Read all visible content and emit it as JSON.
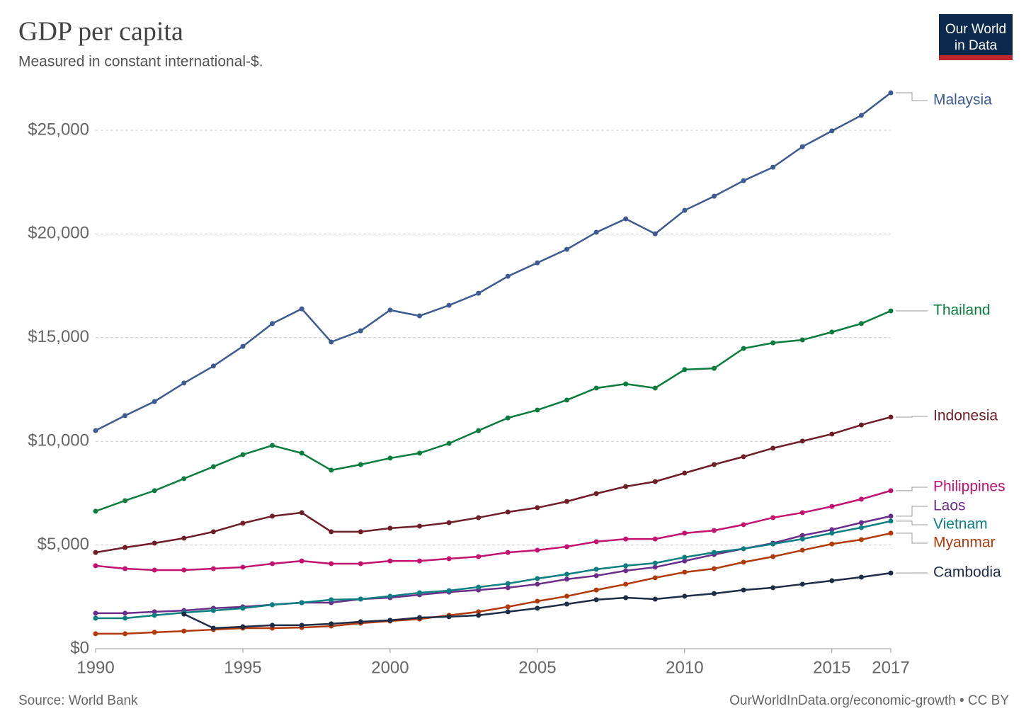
{
  "chart_data": {
    "type": "line",
    "title": "GDP per capita",
    "subtitle": "Measured in constant international-$.",
    "source": "Source: World Bank",
    "footer": "OurWorldInData.org/economic-growth • CC BY",
    "logo": [
      "Our World",
      "in Data"
    ],
    "x": [
      1990,
      1991,
      1992,
      1993,
      1994,
      1995,
      1996,
      1997,
      1998,
      1999,
      2000,
      2001,
      2002,
      2003,
      2004,
      2005,
      2006,
      2007,
      2008,
      2009,
      2010,
      2011,
      2012,
      2013,
      2014,
      2015,
      2016,
      2017
    ],
    "xlim": [
      1990,
      2017
    ],
    "xticks": [
      1990,
      1995,
      2000,
      2005,
      2010,
      2015,
      2017
    ],
    "ylim": [
      0,
      27000
    ],
    "yticks": [
      {
        "value": 0,
        "label": "$0"
      },
      {
        "value": 5000,
        "label": "$5,000"
      },
      {
        "value": 10000,
        "label": "$10,000"
      },
      {
        "value": 15000,
        "label": "$15,000"
      },
      {
        "value": 20000,
        "label": "$20,000"
      },
      {
        "value": 25000,
        "label": "$25,000"
      }
    ],
    "grid": true,
    "series": [
      {
        "name": "Malaysia",
        "color": "#3d5b91",
        "values": [
          10520,
          11240,
          11920,
          12810,
          13630,
          14580,
          15680,
          16390,
          14790,
          15330,
          16330,
          16050,
          16560,
          17140,
          17960,
          18610,
          19260,
          20080,
          20730,
          20010,
          21140,
          21820,
          22570,
          23220,
          24210,
          24970,
          25720,
          26810
        ]
      },
      {
        "name": "Thailand",
        "color": "#0a7d3e",
        "values": [
          6630,
          7140,
          7620,
          8200,
          8780,
          9360,
          9800,
          9430,
          8610,
          8880,
          9190,
          9430,
          9900,
          10520,
          11130,
          11510,
          11990,
          12570,
          12770,
          12570,
          13460,
          13520,
          14480,
          14750,
          14890,
          15270,
          15680,
          16290
        ]
      },
      {
        "name": "Indonesia",
        "color": "#6d1e26",
        "values": [
          4640,
          4880,
          5090,
          5330,
          5640,
          6050,
          6390,
          6560,
          5640,
          5640,
          5810,
          5910,
          6080,
          6320,
          6590,
          6800,
          7100,
          7480,
          7820,
          8060,
          8470,
          8880,
          9260,
          9670,
          10010,
          10350,
          10790,
          11170
        ]
      },
      {
        "name": "Philippines",
        "color": "#c2116e",
        "values": [
          4000,
          3860,
          3790,
          3790,
          3860,
          3930,
          4100,
          4230,
          4100,
          4100,
          4230,
          4230,
          4340,
          4440,
          4640,
          4750,
          4920,
          5160,
          5290,
          5290,
          5570,
          5700,
          5980,
          6320,
          6560,
          6860,
          7210,
          7620
        ]
      },
      {
        "name": "Laos",
        "color": "#6b2d8a",
        "values": [
          1710,
          1710,
          1780,
          1840,
          1950,
          2020,
          2120,
          2220,
          2220,
          2390,
          2460,
          2600,
          2730,
          2830,
          2940,
          3110,
          3350,
          3520,
          3760,
          3930,
          4230,
          4540,
          4820,
          5090,
          5460,
          5740,
          6080,
          6390
        ]
      },
      {
        "name": "Vietnam",
        "color": "#0a7e80",
        "values": [
          1470,
          1470,
          1610,
          1740,
          1840,
          1950,
          2120,
          2220,
          2360,
          2390,
          2530,
          2700,
          2800,
          2970,
          3140,
          3380,
          3590,
          3830,
          4000,
          4130,
          4410,
          4640,
          4820,
          5050,
          5290,
          5570,
          5840,
          6150
        ]
      },
      {
        "name": "Myanmar",
        "color": "#b23a0a",
        "values": [
          720,
          720,
          790,
          850,
          920,
          990,
          990,
          1020,
          1090,
          1230,
          1330,
          1430,
          1610,
          1780,
          2020,
          2290,
          2530,
          2830,
          3110,
          3420,
          3690,
          3860,
          4170,
          4440,
          4750,
          5050,
          5260,
          5570
        ]
      },
      {
        "name": "Cambodia",
        "color": "#1d2d45",
        "values": [
          null,
          null,
          null,
          1670,
          990,
          1060,
          1130,
          1130,
          1200,
          1300,
          1370,
          1500,
          1540,
          1610,
          1780,
          1950,
          2150,
          2360,
          2460,
          2390,
          2530,
          2660,
          2830,
          2940,
          3110,
          3280,
          3450,
          3650
        ]
      }
    ]
  }
}
